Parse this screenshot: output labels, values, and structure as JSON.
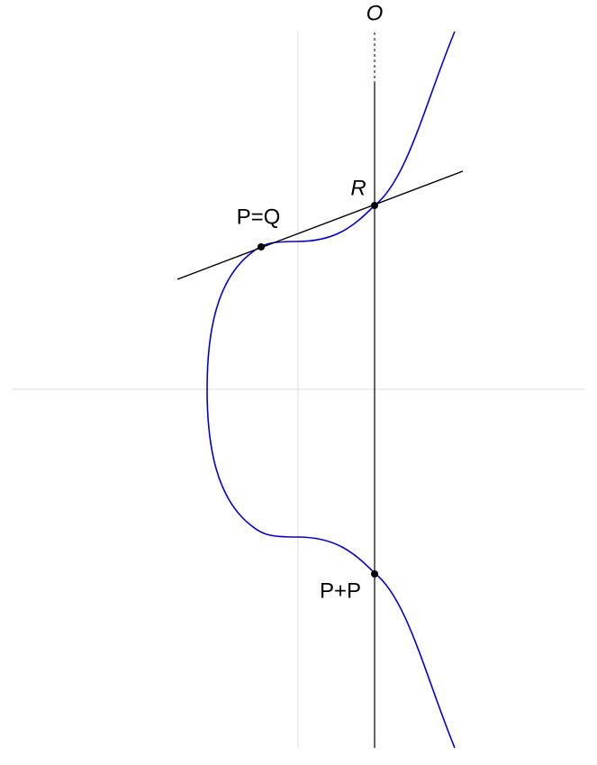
{
  "labels": {
    "infinity": "O",
    "r": "R",
    "p_eq_q": "P=Q",
    "p_plus_p": "P+P"
  }
}
